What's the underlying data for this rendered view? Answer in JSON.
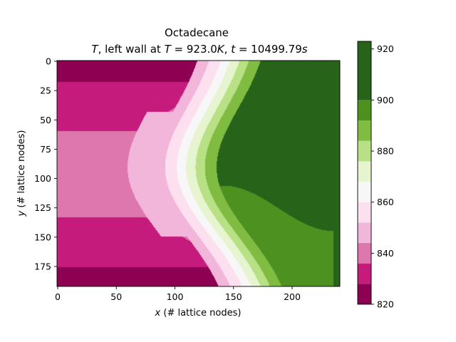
{
  "chart_data": {
    "type": "heatmap",
    "title_line1": "Octadecane",
    "title_line2": {
      "var": "T",
      "mid": ", left wall at ",
      "var2": "T",
      "eq_value": " = 923.0",
      "unit": "K",
      "sep": ", ",
      "var3": "t",
      "eq_value2": " = 10499.79",
      "unit2": "s"
    },
    "xlabel": {
      "var": "x",
      "text": " (# lattice nodes)"
    },
    "ylabel": {
      "var": "y",
      "text": " (# lattice nodes)"
    },
    "xlim": [
      0,
      240
    ],
    "ylim": [
      193,
      0
    ],
    "x_ticks": [
      0,
      50,
      100,
      150,
      200
    ],
    "y_ticks": [
      0,
      25,
      50,
      75,
      100,
      125,
      150,
      175
    ],
    "colorbar": {
      "range": [
        820,
        923
      ],
      "ticks": [
        820,
        840,
        860,
        880,
        900,
        920
      ],
      "levels": [
        820,
        828,
        836,
        844,
        852,
        860,
        868,
        876,
        884,
        892,
        900,
        908,
        916,
        923
      ],
      "colors": [
        "#8e0152",
        "#c51b7d",
        "#de77ae",
        "#f1b6da",
        "#fde0ef",
        "#f7f7f7",
        "#e6f5d0",
        "#b8e186",
        "#7fbc41",
        "#4d9221",
        "#276419"
      ]
    },
    "grid": false,
    "colormap": "PiYG",
    "description_free_field_note": ""
  }
}
